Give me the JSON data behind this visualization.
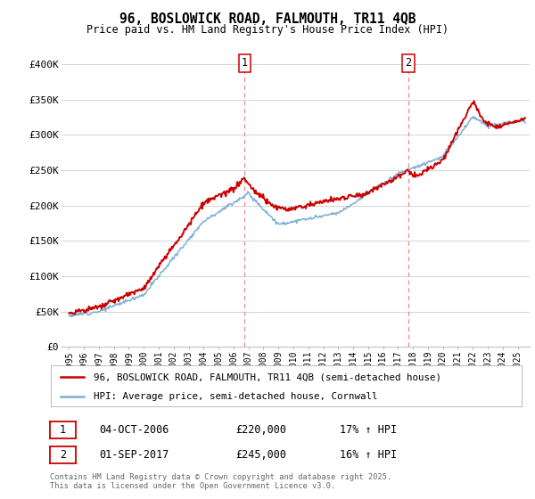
{
  "title": "96, BOSLOWICK ROAD, FALMOUTH, TR11 4QB",
  "subtitle": "Price paid vs. HM Land Registry's House Price Index (HPI)",
  "ylim": [
    0,
    420000
  ],
  "yticks": [
    0,
    50000,
    100000,
    150000,
    200000,
    250000,
    300000,
    350000,
    400000
  ],
  "ytick_labels": [
    "£0",
    "£50K",
    "£100K",
    "£150K",
    "£200K",
    "£250K",
    "£300K",
    "£350K",
    "£400K"
  ],
  "legend_line1": "96, BOSLOWICK ROAD, FALMOUTH, TR11 4QB (semi-detached house)",
  "legend_line2": "HPI: Average price, semi-detached house, Cornwall",
  "sale1_date": "04-OCT-2006",
  "sale1_price": "£220,000",
  "sale1_hpi": "17% ↑ HPI",
  "sale2_date": "01-SEP-2017",
  "sale2_price": "£245,000",
  "sale2_hpi": "16% ↑ HPI",
  "footer": "Contains HM Land Registry data © Crown copyright and database right 2025.\nThis data is licensed under the Open Government Licence v3.0.",
  "red_color": "#cc0000",
  "blue_color": "#7ab0d4",
  "vline_color": "#ee8888",
  "sale1_x_year": 2006.75,
  "sale2_x_year": 2017.67,
  "background_color": "#ffffff",
  "grid_color": "#cccccc",
  "xlim_left": 1994.5,
  "xlim_right": 2025.8
}
